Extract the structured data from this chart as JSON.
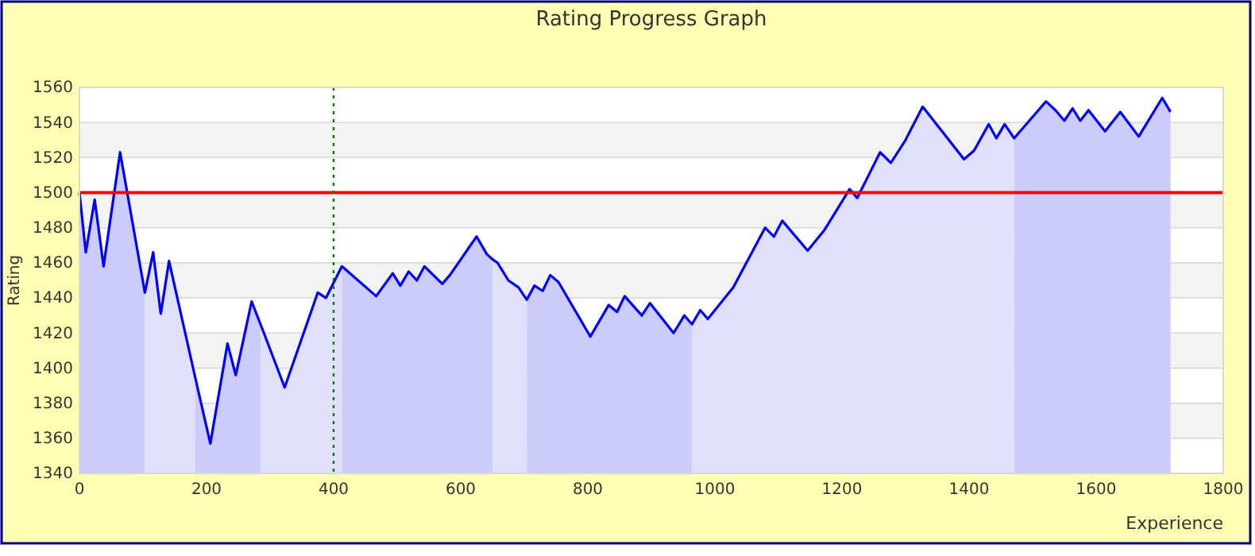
{
  "chart_data": {
    "type": "line",
    "title": "Rating Progress Graph",
    "xlabel": "Experience",
    "ylabel": "Rating",
    "xlim": [
      0,
      1800
    ],
    "xticks": [
      0,
      200,
      400,
      600,
      800,
      1000,
      1200,
      1400,
      1600,
      1800
    ],
    "ylim": [
      1340,
      1560
    ],
    "yticks": [
      1340,
      1360,
      1380,
      1400,
      1420,
      1440,
      1460,
      1480,
      1500,
      1520,
      1540,
      1560
    ],
    "grid": "y",
    "ref_lines": [
      {
        "axis": "y",
        "value": 1500,
        "color": "#ff0000",
        "line_style": "solid"
      },
      {
        "axis": "x",
        "value": 400,
        "color": "#008000",
        "line_style": "dotted"
      }
    ],
    "series": [
      {
        "type": "area",
        "color": "#ccccfa",
        "x": [
          0,
          10,
          24,
          38,
          64,
          103
        ],
        "values": [
          1500,
          1466,
          1496,
          1458,
          1523,
          1443
        ]
      },
      {
        "type": "area",
        "color": "#e0e0fa",
        "x": [
          103,
          116,
          128,
          141,
          182
        ],
        "values": [
          1443,
          1466,
          1431,
          1461,
          1395
        ]
      },
      {
        "type": "area",
        "color": "#ccccfa",
        "x": [
          182,
          206,
          233,
          246,
          271,
          285
        ],
        "values": [
          1395,
          1357,
          1414,
          1396,
          1438,
          1425
        ]
      },
      {
        "type": "area",
        "color": "#e0e0fa",
        "x": [
          285,
          323,
          375,
          388,
          413
        ],
        "values": [
          1425,
          1389,
          1443,
          1440,
          1458
        ]
      },
      {
        "type": "area",
        "color": "#ccccfa",
        "x": [
          413,
          467,
          493,
          505,
          518,
          531,
          543,
          571,
          583,
          625,
          641,
          650
        ],
        "values": [
          1458,
          1441,
          1454,
          1447,
          1455,
          1450,
          1458,
          1448,
          1453,
          1475,
          1465,
          1462
        ]
      },
      {
        "type": "area",
        "color": "#e0e0fa",
        "x": [
          650,
          658,
          675,
          691,
          704
        ],
        "values": [
          1462,
          1460,
          1450,
          1446,
          1439
        ]
      },
      {
        "type": "area",
        "color": "#ccccfa",
        "x": [
          704,
          716,
          729,
          741,
          754,
          804,
          833,
          846,
          858,
          885,
          898,
          935,
          952,
          964
        ],
        "values": [
          1439,
          1447,
          1444,
          1453,
          1449,
          1418,
          1436,
          1432,
          1441,
          1430,
          1437,
          1420,
          1430,
          1425
        ]
      },
      {
        "type": "area",
        "color": "#e0e0fa",
        "x": [
          964,
          977,
          989,
          1029,
          1079,
          1093,
          1106,
          1146,
          1173,
          1212,
          1224,
          1260,
          1277,
          1300,
          1327,
          1392,
          1408,
          1431,
          1443,
          1456,
          1471
        ],
        "values": [
          1425,
          1433,
          1428,
          1446,
          1480,
          1475,
          1484,
          1467,
          1479,
          1502,
          1497,
          1523,
          1517,
          1530,
          1549,
          1519,
          1524,
          1539,
          1531,
          1539,
          1531
        ]
      },
      {
        "type": "area",
        "color": "#ccccfa",
        "x": [
          1471,
          1521,
          1536,
          1550,
          1563,
          1575,
          1588,
          1614,
          1638,
          1667,
          1704,
          1717
        ],
        "values": [
          1531,
          1552,
          1547,
          1541,
          1548,
          1541,
          1547,
          1535,
          1546,
          1532,
          1554,
          1546
        ]
      },
      {
        "type": "line",
        "color": "#0000ff",
        "x": [
          0,
          10,
          24,
          38,
          64,
          103,
          116,
          128,
          141,
          182,
          206,
          233,
          246,
          271,
          285,
          323,
          375,
          388,
          413,
          467,
          493,
          505,
          518,
          531,
          543,
          571,
          583,
          625,
          641,
          650,
          658,
          675,
          691,
          704,
          716,
          729,
          741,
          754,
          804,
          833,
          846,
          858,
          885,
          898,
          935,
          952,
          964,
          977,
          989,
          1029,
          1079,
          1093,
          1106,
          1146,
          1173,
          1212,
          1224,
          1260,
          1277,
          1300,
          1327,
          1392,
          1408,
          1431,
          1443,
          1456,
          1471,
          1521,
          1536,
          1550,
          1563,
          1575,
          1588,
          1614,
          1638,
          1667,
          1704,
          1717
        ],
        "values": [
          1500,
          1466,
          1496,
          1458,
          1523,
          1443,
          1466,
          1431,
          1461,
          1395,
          1357,
          1414,
          1396,
          1438,
          1425,
          1389,
          1443,
          1440,
          1458,
          1441,
          1454,
          1447,
          1455,
          1450,
          1458,
          1448,
          1453,
          1475,
          1465,
          1462,
          1460,
          1450,
          1446,
          1439,
          1447,
          1444,
          1453,
          1449,
          1418,
          1436,
          1432,
          1441,
          1430,
          1437,
          1420,
          1430,
          1425,
          1433,
          1428,
          1446,
          1480,
          1475,
          1484,
          1467,
          1479,
          1502,
          1497,
          1523,
          1517,
          1530,
          1549,
          1519,
          1524,
          1539,
          1531,
          1539,
          1531,
          1552,
          1547,
          1541,
          1548,
          1541,
          1547,
          1535,
          1546,
          1532,
          1554,
          1546
        ]
      }
    ]
  }
}
